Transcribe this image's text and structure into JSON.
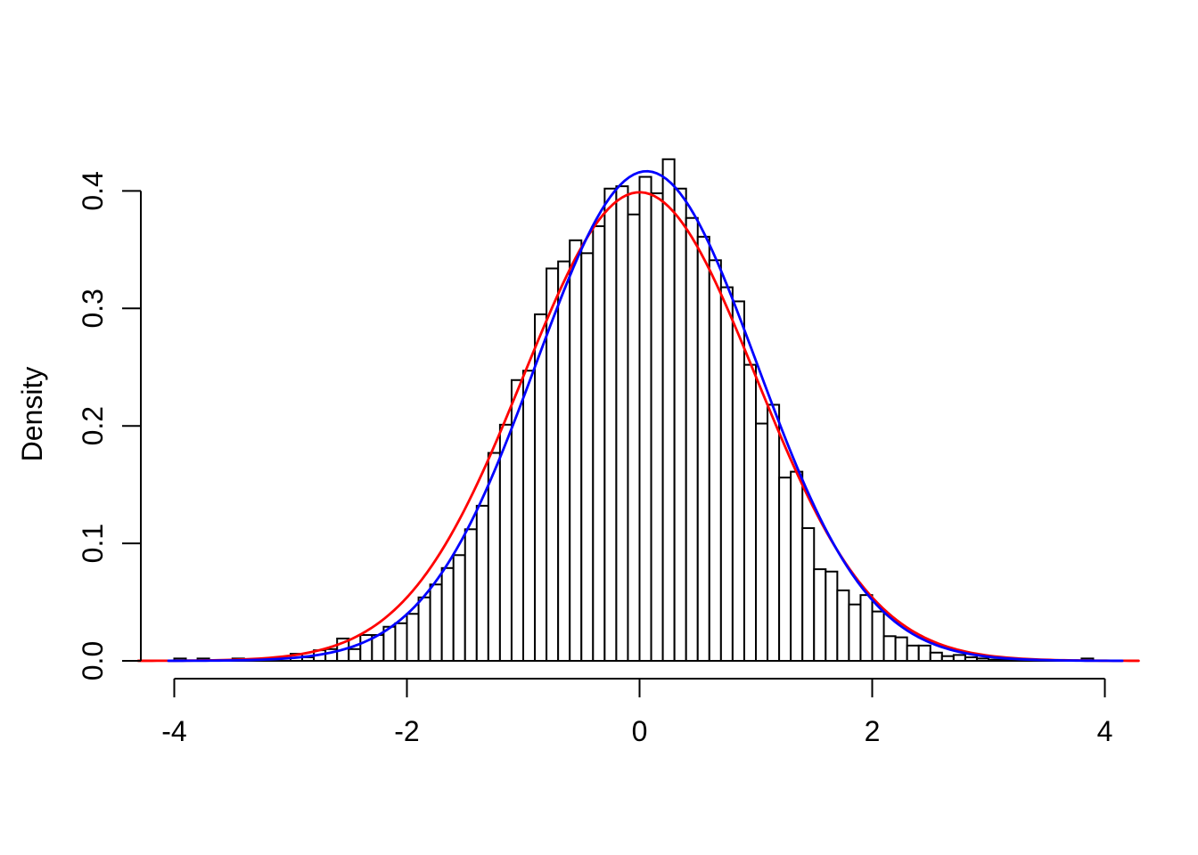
{
  "figure": {
    "background": "#FFFFFF",
    "title": "",
    "x_axis": {
      "tick_labels": [
        "-4",
        "-2",
        "0",
        "2",
        "4"
      ],
      "tick_values": [
        -4,
        -2,
        0,
        2,
        4
      ],
      "label": ""
    },
    "y_axis": {
      "tick_labels": [
        "0.0",
        "0.1",
        "0.2",
        "0.3",
        "0.4"
      ],
      "tick_values": [
        0,
        0.1,
        0.2,
        0.3,
        0.4
      ],
      "label": "Density"
    }
  },
  "chart_data": {
    "type": "bar",
    "subtype": "histogram-with-density-curves",
    "title": "",
    "xlabel": "",
    "ylabel": "Density",
    "xlim": [
      -4.32,
      4.32
    ],
    "ylim": [
      0,
      0.442
    ],
    "grid": false,
    "legend": null,
    "bin_width": 0.1,
    "bin_start": -4.0,
    "bin_heights": [
      0.002,
      0,
      0.002,
      0,
      0,
      0.002,
      0,
      0,
      0,
      0,
      0.006,
      0.003,
      0.009,
      0.01,
      0.019,
      0.01,
      0.022,
      0.022,
      0.029,
      0.032,
      0.04,
      0.054,
      0.065,
      0.079,
      0.09,
      0.112,
      0.132,
      0.177,
      0.201,
      0.239,
      0.247,
      0.295,
      0.334,
      0.34,
      0.358,
      0.347,
      0.37,
      0.402,
      0.404,
      0.38,
      0.412,
      0.398,
      0.427,
      0.402,
      0.377,
      0.361,
      0.341,
      0.318,
      0.306,
      0.252,
      0.202,
      0.218,
      0.156,
      0.161,
      0.113,
      0.078,
      0.076,
      0.06,
      0.048,
      0.056,
      0.042,
      0.021,
      0.02,
      0.013,
      0.013,
      0.007,
      0.004,
      0.005,
      0.003,
      0.002,
      0.001,
      0.001,
      0,
      0,
      0,
      0,
      0,
      0,
      0.002,
      0
    ],
    "bar_fill": "#FFFFFF",
    "bar_stroke": "#000000",
    "curves": [
      {
        "name": "normal-curve",
        "color": "#FF0000",
        "mean": 0.0,
        "sd": 1.0,
        "peak": 0.3989,
        "x_range": [
          -4.31,
          4.31
        ]
      },
      {
        "name": "density-curve",
        "color": "#0000FF",
        "mean": 0.06,
        "sd": 0.95,
        "peak": 0.4168,
        "x_range": [
          -4.05,
          4.18
        ]
      }
    ],
    "axis_color": "#000000"
  }
}
